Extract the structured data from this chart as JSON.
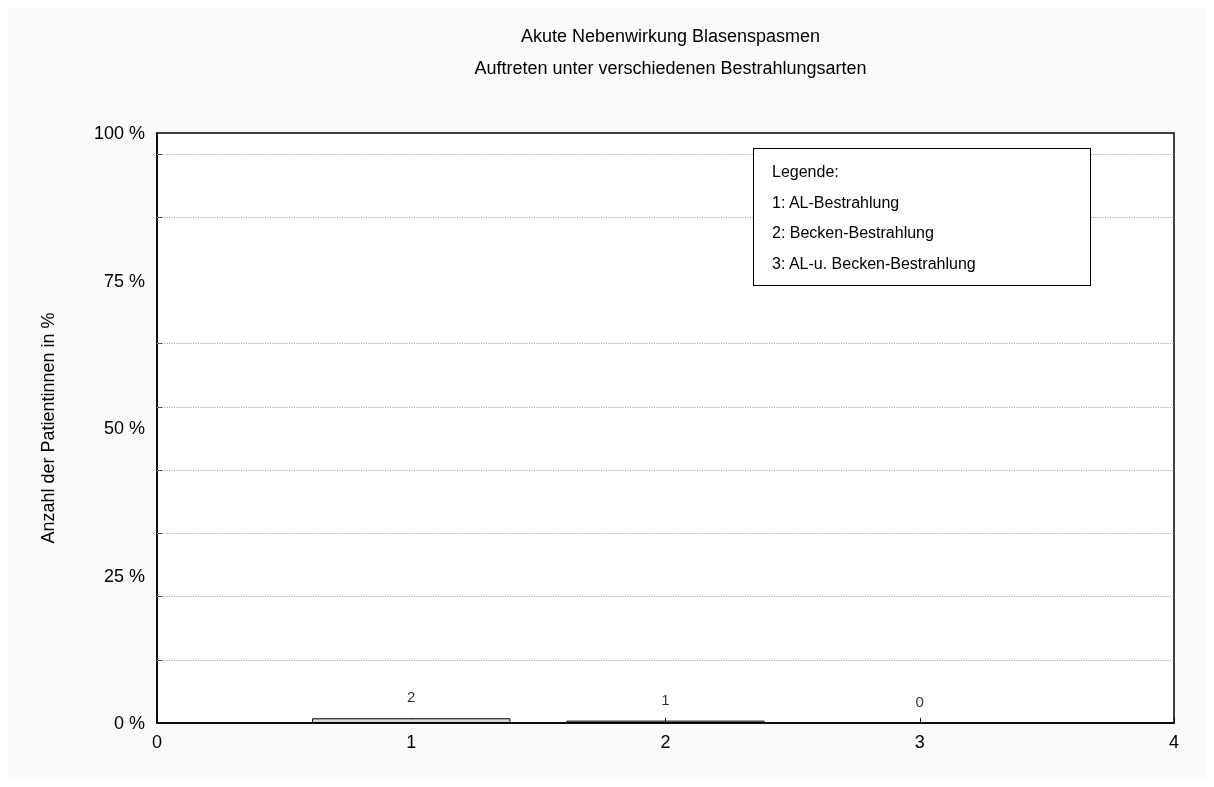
{
  "chart_data": {
    "type": "bar",
    "title": "Akute Nebenwirkung Blasenspasmen",
    "subtitle": "Auftreten unter verschiedenen Bestrahlungsarten",
    "ylabel": "Anzahl der Patientinnen in %",
    "x": [
      1,
      2,
      3
    ],
    "values": [
      0.8,
      0.4,
      0
    ],
    "color": "#d9d9d9",
    "xlim": [
      0,
      4
    ],
    "xticks": [
      0,
      1,
      2,
      3,
      4
    ],
    "ylim": [
      0,
      100
    ],
    "yticks": [
      {
        "value": 0,
        "label": "0 %"
      },
      {
        "value": 10.7,
        "label": null
      },
      {
        "value": 21.4,
        "label": null
      },
      {
        "value": 25,
        "label": "25 %"
      },
      {
        "value": 32.1,
        "label": null
      },
      {
        "value": 42.9,
        "label": null
      },
      {
        "value": 50,
        "label": "50 %"
      },
      {
        "value": 53.6,
        "label": null
      },
      {
        "value": 64.3,
        "label": null
      },
      {
        "value": 75,
        "label": "75 %"
      },
      {
        "value": 85.7,
        "label": null
      },
      {
        "value": 96.4,
        "label": null
      },
      {
        "value": 100,
        "label": "100 %"
      }
    ],
    "grid": "y",
    "annotations": [
      {
        "text": "2",
        "x": 1,
        "y": 0.8
      },
      {
        "text": "1",
        "x": 2,
        "y": 0.4
      },
      {
        "text": "0",
        "x": 3,
        "y": 0
      },
      "Legende:",
      "1: AL-Bestrahlung",
      "2: Becken-Bestrahlung",
      "3: AL-u. Becken-Bestrahlung"
    ]
  }
}
